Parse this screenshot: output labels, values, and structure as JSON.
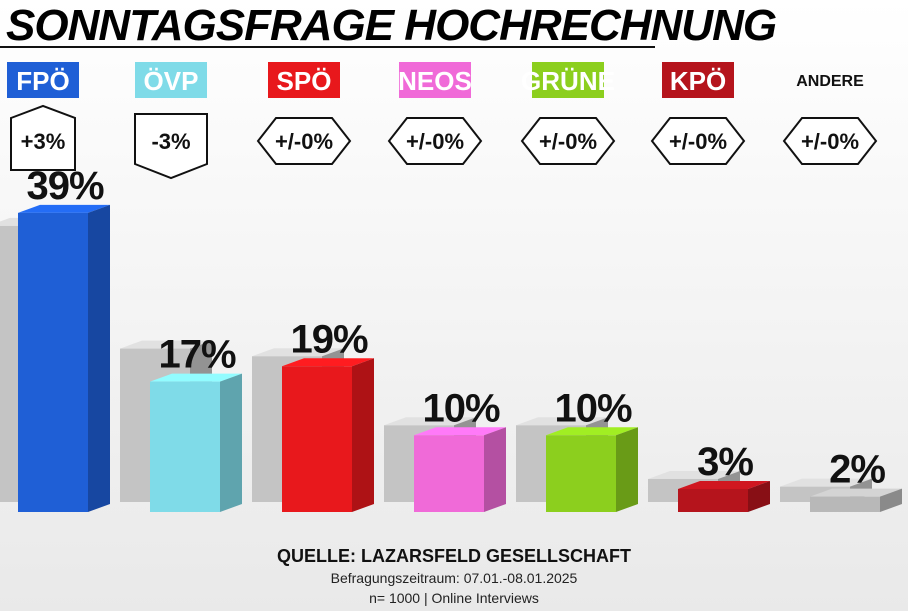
{
  "chart_data": {
    "type": "bar",
    "title": "SONNTAGSFRAGE HOCHRECHNUNG",
    "categories": [
      "FPÖ",
      "ÖVP",
      "SPÖ",
      "NEOS",
      "GRÜNE",
      "KPÖ",
      "ANDERE"
    ],
    "values": [
      39,
      17,
      19,
      10,
      10,
      3,
      2
    ],
    "value_labels": [
      "39%",
      "17%",
      "19%",
      "10%",
      "10%",
      "3%",
      "2%"
    ],
    "colors": [
      "#1f5fd6",
      "#7fdbe8",
      "#e8181c",
      "#f06ad8",
      "#8ccf1e",
      "#b5141c",
      "#b8b8b8"
    ],
    "previous_values": [
      36,
      20,
      19,
      10,
      10,
      3,
      2
    ],
    "previous_color": "#c4c4c4",
    "changes": [
      "+3%",
      "-3%",
      "+/-0%",
      "+/-0%",
      "+/-0%",
      "+/-0%",
      "+/-0%"
    ],
    "source": [
      "QUELLE: LAZARSFELD GESELLSCHAFT",
      "Befragungszeitraum: 07.01.-08.01.2025",
      "n= 1000 | Online Interviews"
    ]
  }
}
